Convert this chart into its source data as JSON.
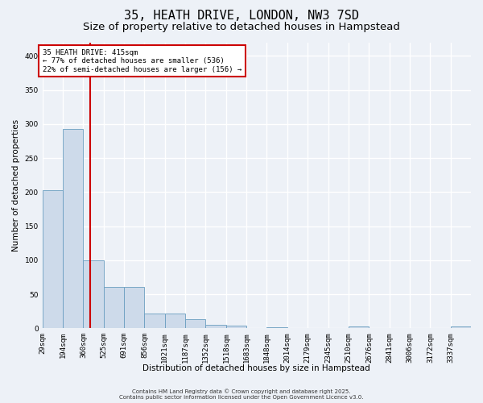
{
  "title_line1": "35, HEATH DRIVE, LONDON, NW3 7SD",
  "title_line2": "Size of property relative to detached houses in Hampstead",
  "xlabel": "Distribution of detached houses by size in Hampstead",
  "ylabel": "Number of detached properties",
  "bar_values": [
    203,
    293,
    100,
    61,
    61,
    21,
    21,
    13,
    5,
    4,
    0,
    2,
    0,
    0,
    0,
    3,
    0,
    0,
    0,
    0,
    3
  ],
  "bin_edges": [
    29,
    194,
    360,
    525,
    691,
    856,
    1021,
    1187,
    1352,
    1518,
    1683,
    1848,
    2014,
    2179,
    2345,
    2510,
    2676,
    2841,
    3006,
    3172,
    3337
  ],
  "xlabels": [
    "29sqm",
    "194sqm",
    "360sqm",
    "525sqm",
    "691sqm",
    "856sqm",
    "1021sqm",
    "1187sqm",
    "1352sqm",
    "1518sqm",
    "1683sqm",
    "1848sqm",
    "2014sqm",
    "2179sqm",
    "2345sqm",
    "2510sqm",
    "2676sqm",
    "2841sqm",
    "3006sqm",
    "3172sqm",
    "3337sqm"
  ],
  "bar_color": "#cddaea",
  "bar_edge_color": "#6a9ec0",
  "background_color": "#edf1f7",
  "grid_color": "#ffffff",
  "vline_x": 415,
  "vline_color": "#cc0000",
  "annotation_text": "35 HEATH DRIVE: 415sqm\n← 77% of detached houses are smaller (536)\n22% of semi-detached houses are larger (156) →",
  "annotation_box_color": "#cc0000",
  "ylim": [
    0,
    420
  ],
  "yticks": [
    0,
    50,
    100,
    150,
    200,
    250,
    300,
    350,
    400
  ],
  "footer_text1": "Contains HM Land Registry data © Crown copyright and database right 2025.",
  "footer_text2": "Contains public sector information licensed under the Open Government Licence v3.0.",
  "title_fontsize": 11,
  "subtitle_fontsize": 9.5,
  "label_fontsize": 7.5,
  "tick_fontsize": 6.5,
  "annotation_fontsize": 6.5,
  "footer_fontsize": 5.0
}
